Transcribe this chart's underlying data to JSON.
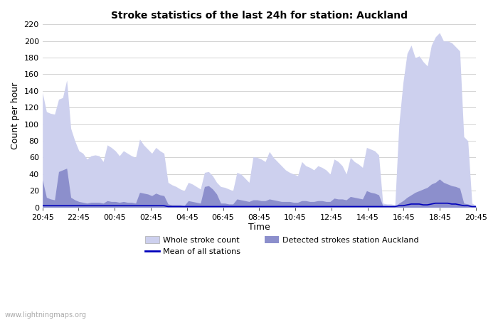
{
  "title": "Stroke statistics of the last 24h for station: Auckland",
  "xlabel": "Time",
  "ylabel": "Count per hour",
  "ylim": [
    0,
    220
  ],
  "yticks": [
    0,
    20,
    40,
    60,
    80,
    100,
    120,
    140,
    160,
    180,
    200,
    220
  ],
  "x_labels": [
    "20:45",
    "22:45",
    "00:45",
    "02:45",
    "04:45",
    "06:45",
    "08:45",
    "10:45",
    "12:45",
    "14:45",
    "16:45",
    "18:45",
    "20:45"
  ],
  "watermark": "www.lightningmaps.org",
  "color_whole": "#cdd0ee",
  "color_detected": "#8c8fcc",
  "color_mean": "#0000bb",
  "whole_stroke": [
    138,
    115,
    113,
    112,
    130,
    132,
    153,
    95,
    80,
    68,
    65,
    58,
    62,
    63,
    62,
    55,
    75,
    72,
    68,
    62,
    68,
    65,
    62,
    60,
    82,
    75,
    70,
    65,
    72,
    68,
    65,
    30,
    27,
    25,
    22,
    20,
    30,
    28,
    25,
    22,
    42,
    43,
    38,
    30,
    25,
    24,
    22,
    20,
    42,
    40,
    35,
    30,
    61,
    60,
    58,
    55,
    67,
    60,
    55,
    50,
    45,
    42,
    40,
    38,
    55,
    50,
    48,
    45,
    50,
    48,
    45,
    40,
    58,
    55,
    50,
    40,
    60,
    55,
    52,
    48,
    72,
    70,
    68,
    63,
    5,
    4,
    4,
    3,
    100,
    150,
    185,
    195,
    180,
    182,
    175,
    170,
    195,
    205,
    210,
    200,
    200,
    198,
    193,
    188,
    85,
    80,
    5,
    2
  ],
  "detected_stroke": [
    33,
    12,
    10,
    9,
    43,
    45,
    47,
    12,
    9,
    7,
    6,
    5,
    6,
    6,
    6,
    5,
    8,
    7,
    7,
    6,
    7,
    6,
    6,
    5,
    18,
    17,
    16,
    14,
    17,
    15,
    14,
    4,
    3,
    3,
    3,
    2,
    8,
    7,
    6,
    5,
    25,
    26,
    22,
    16,
    5,
    5,
    4,
    4,
    10,
    9,
    8,
    7,
    9,
    9,
    8,
    8,
    10,
    9,
    8,
    7,
    7,
    7,
    6,
    6,
    8,
    8,
    7,
    7,
    8,
    8,
    7,
    7,
    11,
    10,
    10,
    9,
    13,
    12,
    11,
    10,
    20,
    18,
    17,
    15,
    2,
    2,
    1,
    1,
    5,
    8,
    12,
    15,
    18,
    20,
    22,
    24,
    28,
    30,
    34,
    30,
    28,
    26,
    25,
    23,
    5,
    4,
    2,
    1
  ],
  "mean_stroke": [
    2,
    2,
    2,
    2,
    2,
    2,
    2,
    2,
    2,
    2,
    2,
    2,
    2,
    2,
    2,
    2,
    2,
    2,
    2,
    2,
    2,
    2,
    2,
    2,
    2,
    2,
    2,
    2,
    2,
    2,
    2,
    1,
    1,
    1,
    1,
    1,
    1,
    1,
    1,
    1,
    1,
    1,
    1,
    1,
    1,
    1,
    1,
    1,
    1,
    1,
    1,
    1,
    1,
    1,
    1,
    1,
    1,
    1,
    1,
    1,
    1,
    1,
    1,
    1,
    1,
    1,
    1,
    1,
    1,
    1,
    1,
    1,
    1,
    1,
    1,
    1,
    1,
    1,
    1,
    1,
    1,
    1,
    1,
    1,
    1,
    1,
    1,
    1,
    2,
    2,
    3,
    4,
    4,
    4,
    3,
    3,
    4,
    5,
    5,
    5,
    5,
    4,
    4,
    3,
    2,
    2,
    1,
    1
  ]
}
